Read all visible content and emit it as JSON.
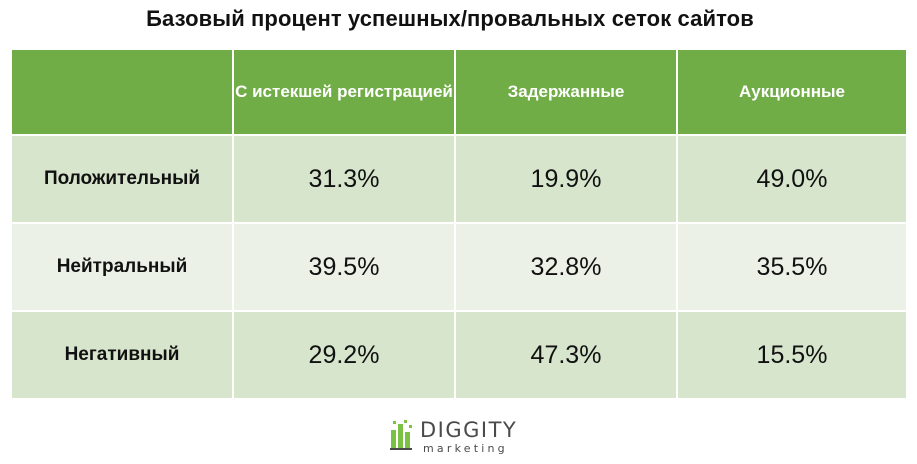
{
  "title": "Базовый процент успешных/провальных сеток сайтов",
  "chart_data": {
    "type": "table",
    "title": "Базовый процент успешных/провальных сеток сайтов",
    "columns": [
      "",
      "С истекшей регистрацией",
      "Задержанные",
      "Аукционные"
    ],
    "header": {
      "corner": "",
      "col1": "С истекшей регистрацией",
      "col2": "Задержанные",
      "col3": "Аукционные"
    },
    "rows": [
      {
        "label": "Положительный",
        "values": [
          "31.3%",
          "19.9%",
          "49.0%"
        ]
      },
      {
        "label": "Нейтральный",
        "values": [
          "39.5%",
          "32.8%",
          "35.5%"
        ]
      },
      {
        "label": "Негативный",
        "values": [
          "29.2%",
          "47.3%",
          "15.5%"
        ]
      }
    ]
  },
  "logo": {
    "word": "DIGGITY",
    "sub": "marketing",
    "icon": "diggity-bars-icon"
  },
  "colors": {
    "header_bg": "#70ad47",
    "row_dark": "#d6e5cc",
    "row_light": "#ebf1e6",
    "logo_green": "#7bc143"
  }
}
